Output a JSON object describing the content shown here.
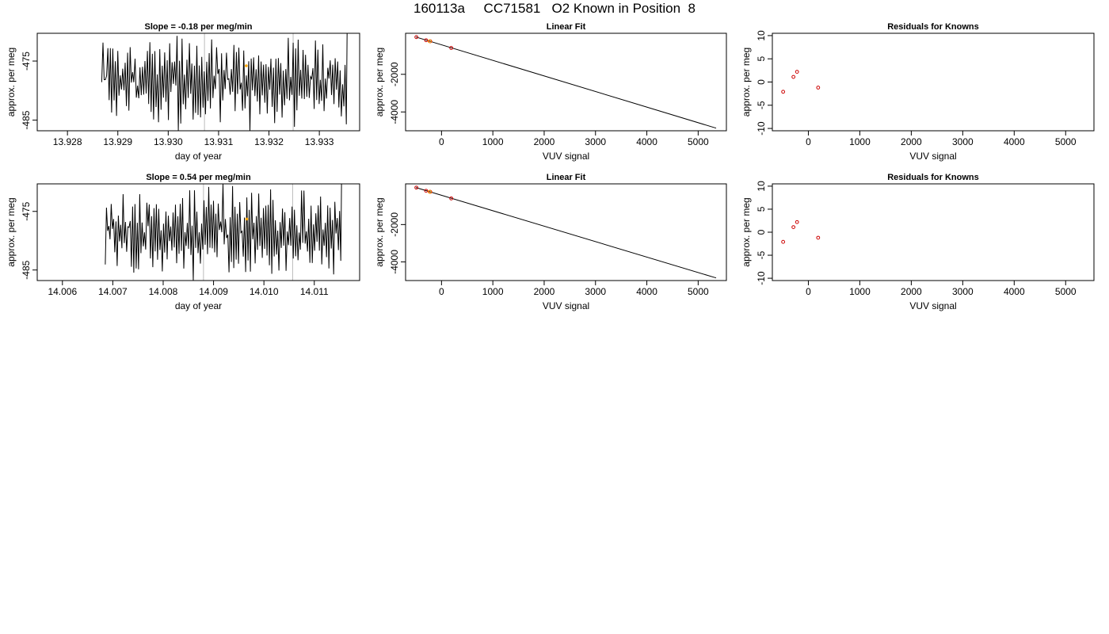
{
  "title": "160113a     CC71581   O2 Known in Position  8",
  "chart_data": [
    {
      "type": "line",
      "title": "Slope =  -0.18  per meg/min",
      "xlabel": "day of year",
      "ylabel": "approx. per meg",
      "xlim": [
        13.9274,
        13.9338
      ],
      "ylim": [
        -486.8,
        -470.3
      ],
      "xticks": [
        "13.928",
        "13.929",
        "13.930",
        "13.931",
        "13.932",
        "13.933"
      ],
      "xtick_values": [
        13.928,
        13.929,
        13.93,
        13.931,
        13.932,
        13.933
      ],
      "yticks": [
        "-475",
        "-485"
      ],
      "ytick_values": [
        -475,
        -485
      ],
      "vlines": [
        13.93072,
        13.93248
      ],
      "series_start": 13.92868,
      "series_end": 13.93356,
      "series_n": 200,
      "series_seed": 7,
      "marker": {
        "x": 13.93155,
        "y": -475.8,
        "color": "#ffa500"
      }
    },
    {
      "type": "scatter",
      "title": "Linear Fit",
      "xlabel": "VUV signal",
      "ylabel": "approx. per meg",
      "xlim": [
        -700,
        5550
      ],
      "ylim": [
        -5000,
        180
      ],
      "xticks": [
        "0",
        "1000",
        "2000",
        "3000",
        "4000",
        "5000"
      ],
      "xtick_values": [
        0,
        1000,
        2000,
        3000,
        4000,
        5000
      ],
      "yticks": [
        "-2000",
        "-4000"
      ],
      "ytick_values": [
        -2000,
        -4000
      ],
      "line": {
        "x": [
          -500,
          5350
        ],
        "y": [
          -18,
          -4860
        ]
      },
      "points": [
        {
          "x": -490,
          "y": -22,
          "color": "#cc0000"
        },
        {
          "x": -300,
          "y": -190,
          "color": "#cc0000"
        },
        {
          "x": -220,
          "y": -245,
          "color": "#cc0000"
        },
        {
          "x": 190,
          "y": -600,
          "color": "#cc0000"
        },
        {
          "x": -230,
          "y": -245,
          "color": "#ffa500"
        }
      ]
    },
    {
      "type": "scatter",
      "title": "Residuals for Knowns",
      "xlabel": "VUV signal",
      "ylabel": "approx. per meg",
      "xlim": [
        -700,
        5550
      ],
      "ylim": [
        -10.5,
        10.5
      ],
      "xticks": [
        "0",
        "1000",
        "2000",
        "3000",
        "4000",
        "5000"
      ],
      "xtick_values": [
        0,
        1000,
        2000,
        3000,
        4000,
        5000
      ],
      "yticks": [
        "-10",
        "-5",
        "0",
        "5",
        "10"
      ],
      "ytick_values": [
        -10,
        -5,
        0,
        5,
        10
      ],
      "points": [
        {
          "x": -490,
          "y": -2.1,
          "color": "#cc0000"
        },
        {
          "x": -290,
          "y": 1.1,
          "color": "#cc0000"
        },
        {
          "x": -220,
          "y": 2.2,
          "color": "#cc0000"
        },
        {
          "x": 190,
          "y": -1.2,
          "color": "#cc0000"
        }
      ]
    },
    {
      "type": "line",
      "title": "Slope =  0.54  per meg/min",
      "xlabel": "day of year",
      "ylabel": "approx. per meg",
      "xlim": [
        14.0055,
        14.0119
      ],
      "ylim": [
        -486.8,
        -470.3
      ],
      "xticks": [
        "14.006",
        "14.007",
        "14.008",
        "14.009",
        "14.010",
        "14.011"
      ],
      "xtick_values": [
        14.006,
        14.007,
        14.008,
        14.009,
        14.01,
        14.011
      ],
      "yticks": [
        "-475",
        "-485"
      ],
      "ytick_values": [
        -475,
        -485
      ],
      "vlines": [
        14.0088,
        14.01057
      ],
      "series_start": 14.00685,
      "series_end": 14.01155,
      "series_n": 200,
      "series_seed": 19,
      "marker": {
        "x": 14.00966,
        "y": -476.3,
        "color": "#ffa500"
      }
    },
    {
      "type": "scatter",
      "title": "Linear Fit",
      "xlabel": "VUV signal",
      "ylabel": "approx. per meg",
      "xlim": [
        -700,
        5550
      ],
      "ylim": [
        -5000,
        180
      ],
      "xticks": [
        "0",
        "1000",
        "2000",
        "3000",
        "4000",
        "5000"
      ],
      "xtick_values": [
        0,
        1000,
        2000,
        3000,
        4000,
        5000
      ],
      "yticks": [
        "-2000",
        "-4000"
      ],
      "ytick_values": [
        -2000,
        -4000
      ],
      "line": {
        "x": [
          -500,
          5350
        ],
        "y": [
          -18,
          -4860
        ]
      },
      "points": [
        {
          "x": -490,
          "y": -22,
          "color": "#cc0000"
        },
        {
          "x": -300,
          "y": -190,
          "color": "#cc0000"
        },
        {
          "x": -220,
          "y": -245,
          "color": "#cc0000"
        },
        {
          "x": 190,
          "y": -600,
          "color": "#cc0000"
        },
        {
          "x": -230,
          "y": -245,
          "color": "#ffa500"
        }
      ]
    },
    {
      "type": "scatter",
      "title": "Residuals for Knowns",
      "xlabel": "VUV signal",
      "ylabel": "approx. per meg",
      "xlim": [
        -700,
        5550
      ],
      "ylim": [
        -10.5,
        10.5
      ],
      "xticks": [
        "0",
        "1000",
        "2000",
        "3000",
        "4000",
        "5000"
      ],
      "xtick_values": [
        0,
        1000,
        2000,
        3000,
        4000,
        5000
      ],
      "yticks": [
        "-10",
        "-5",
        "0",
        "5",
        "10"
      ],
      "ytick_values": [
        -10,
        -5,
        0,
        5,
        10
      ],
      "points": [
        {
          "x": -490,
          "y": -2.1,
          "color": "#cc0000"
        },
        {
          "x": -290,
          "y": 1.1,
          "color": "#cc0000"
        },
        {
          "x": -220,
          "y": 2.2,
          "color": "#cc0000"
        },
        {
          "x": 190,
          "y": -1.2,
          "color": "#cc0000"
        }
      ]
    }
  ]
}
